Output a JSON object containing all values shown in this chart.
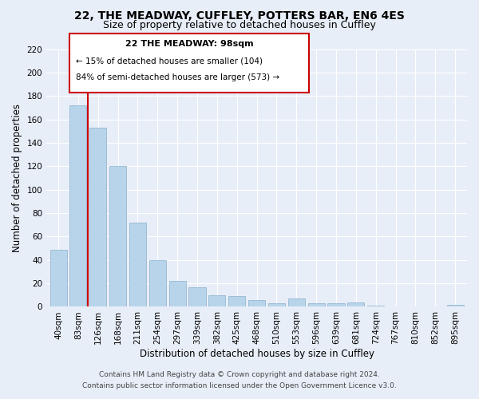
{
  "title": "22, THE MEADWAY, CUFFLEY, POTTERS BAR, EN6 4ES",
  "subtitle": "Size of property relative to detached houses in Cuffley",
  "xlabel": "Distribution of detached houses by size in Cuffley",
  "ylabel": "Number of detached properties",
  "bar_labels": [
    "40sqm",
    "83sqm",
    "126sqm",
    "168sqm",
    "211sqm",
    "254sqm",
    "297sqm",
    "339sqm",
    "382sqm",
    "425sqm",
    "468sqm",
    "510sqm",
    "553sqm",
    "596sqm",
    "639sqm",
    "681sqm",
    "724sqm",
    "767sqm",
    "810sqm",
    "852sqm",
    "895sqm"
  ],
  "bar_values": [
    49,
    172,
    153,
    120,
    72,
    40,
    22,
    17,
    10,
    9,
    6,
    3,
    7,
    3,
    3,
    4,
    1,
    0,
    0,
    0,
    2
  ],
  "bar_color": "#b8d4ea",
  "bar_edge_color": "#b8d4ea",
  "vline_x": 1.5,
  "vline_color": "#cc0000",
  "ylim": [
    0,
    220
  ],
  "yticks": [
    0,
    20,
    40,
    60,
    80,
    100,
    120,
    140,
    160,
    180,
    200,
    220
  ],
  "annotation_title": "22 THE MEADWAY: 98sqm",
  "annotation_line1": "← 15% of detached houses are smaller (104)",
  "annotation_line2": "84% of semi-detached houses are larger (573) →",
  "annotation_box_color": "#ffffff",
  "annotation_box_edge": "#cc0000",
  "footer_line1": "Contains HM Land Registry data © Crown copyright and database right 2024.",
  "footer_line2": "Contains public sector information licensed under the Open Government Licence v3.0.",
  "background_color": "#e8eef8",
  "grid_color": "#ffffff",
  "title_fontsize": 10,
  "subtitle_fontsize": 9,
  "axis_label_fontsize": 8.5,
  "tick_fontsize": 7.5,
  "footer_fontsize": 6.5
}
